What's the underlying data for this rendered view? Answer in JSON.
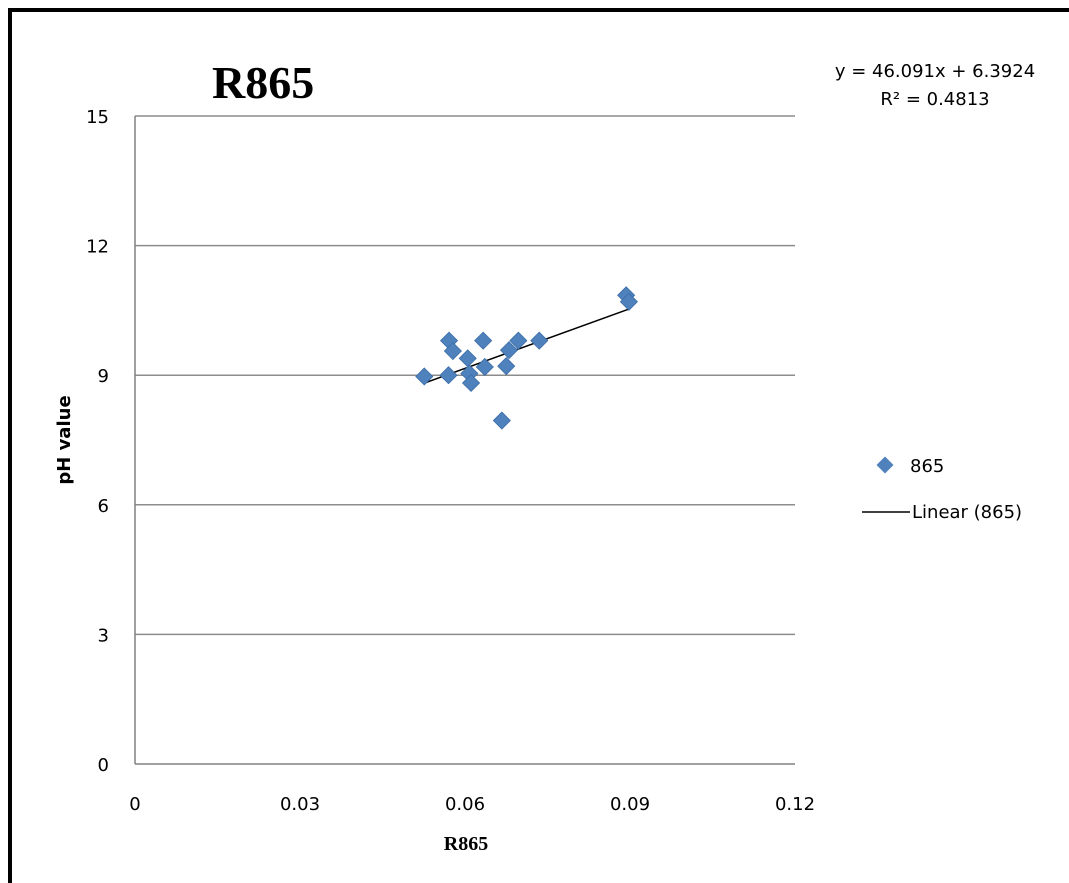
{
  "chart_data": {
    "type": "scatter",
    "title": "R865",
    "xlabel": "R865",
    "ylabel": "pH value",
    "xlim": [
      0,
      0.12
    ],
    "ylim": [
      0,
      15
    ],
    "x_ticks": [
      "0",
      "0.03",
      "0.06",
      "0.09",
      "0.12"
    ],
    "y_ticks": [
      "0",
      "3",
      "6",
      "9",
      "12",
      "15"
    ],
    "grid": "horizontal",
    "legend_position": "right",
    "series": [
      {
        "name": "865",
        "color": "#4f81bd",
        "marker": "diamond",
        "points": [
          [
            0.0526,
            8.97
          ],
          [
            0.057,
            9.0
          ],
          [
            0.0571,
            9.8
          ],
          [
            0.0578,
            9.56
          ],
          [
            0.0605,
            9.39
          ],
          [
            0.0608,
            9.04
          ],
          [
            0.0611,
            8.82
          ],
          [
            0.0633,
            9.8
          ],
          [
            0.0636,
            9.19
          ],
          [
            0.0667,
            7.95
          ],
          [
            0.0675,
            9.21
          ],
          [
            0.068,
            9.58
          ],
          [
            0.0697,
            9.8
          ],
          [
            0.0735,
            9.8
          ],
          [
            0.0893,
            10.85
          ],
          [
            0.0898,
            10.7
          ]
        ]
      }
    ],
    "trendline": {
      "name": "Linear (865)",
      "color": "#000000",
      "slope": 46.091,
      "intercept": 6.3924,
      "x_range": [
        0.0526,
        0.0898
      ],
      "equation": "y = 46.091x + 6.3924",
      "r_squared": "R² = 0.4813"
    }
  }
}
